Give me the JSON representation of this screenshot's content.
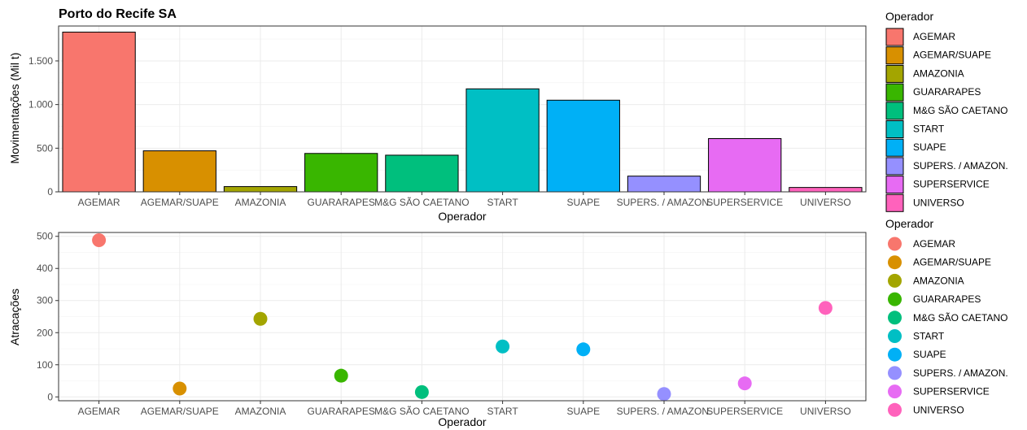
{
  "chart_data": [
    {
      "type": "bar",
      "title": "Porto do Recife SA",
      "xlabel": "Operador",
      "ylabel": "Movimentações (Mil t)",
      "categories": [
        "AGEMAR",
        "AGEMAR/SUAPE",
        "AMAZONIA",
        "GUARARAPES",
        "M&G SÃO CAETANO",
        "START",
        "SUAPE",
        "SUPERS. / AMAZON.",
        "SUPERSERVICE",
        "UNIVERSO"
      ],
      "values": [
        1830,
        470,
        60,
        440,
        420,
        1180,
        1050,
        180,
        610,
        50
      ],
      "ylim": [
        0,
        1900
      ],
      "yticks": [
        0,
        500,
        1000,
        1500
      ],
      "ytick_labels": [
        "0",
        "500",
        "1.000",
        "1.500"
      ],
      "grid": true,
      "legend": {
        "title": "Operador",
        "position": "right",
        "entries": [
          "AGEMAR",
          "AGEMAR/SUAPE",
          "AMAZONIA",
          "GUARARAPES",
          "M&G SÃO CAETANO",
          "START",
          "SUAPE",
          "SUPERS. / AMAZON.",
          "SUPERSERVICE",
          "UNIVERSO"
        ]
      }
    },
    {
      "type": "scatter",
      "title": "",
      "xlabel": "Operador",
      "ylabel": "Atracações",
      "categories": [
        "AGEMAR",
        "AGEMAR/SUAPE",
        "AMAZONIA",
        "GUARARAPES",
        "M&G SÃO CAETANO",
        "START",
        "SUAPE",
        "SUPERS. / AMAZON.",
        "SUPERSERVICE",
        "UNIVERSO"
      ],
      "values": [
        488,
        26,
        243,
        66,
        15,
        157,
        148,
        9,
        42,
        277
      ],
      "ylim": [
        -12,
        512
      ],
      "yticks": [
        0,
        100,
        200,
        300,
        400,
        500
      ],
      "ytick_labels": [
        "0",
        "100",
        "200",
        "300",
        "400",
        "500"
      ],
      "grid": true,
      "legend": {
        "title": "Operador",
        "position": "right",
        "entries": [
          "AGEMAR",
          "AGEMAR/SUAPE",
          "AMAZONIA",
          "GUARARAPES",
          "M&G SÃO CAETANO",
          "START",
          "SUAPE",
          "SUPERS. / AMAZON.",
          "SUPERSERVICE",
          "UNIVERSO"
        ]
      }
    }
  ],
  "colors": [
    "#F8766D",
    "#D89000",
    "#A3A500",
    "#39B600",
    "#00BF7D",
    "#00BFC4",
    "#00B0F6",
    "#9590FF",
    "#E76BF3",
    "#FF62BC"
  ]
}
